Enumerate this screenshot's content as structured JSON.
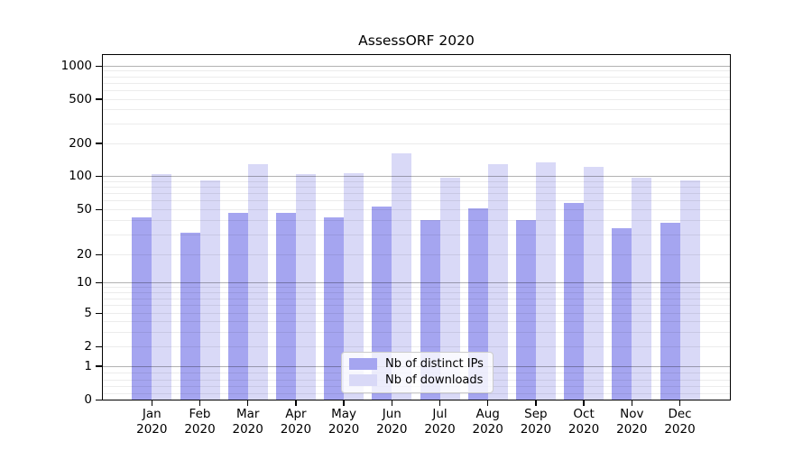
{
  "title": "AssessORF 2020",
  "chart_data": {
    "type": "bar",
    "title": "AssessORF 2020",
    "categories": [
      "Jan 2020",
      "Feb 2020",
      "Mar 2020",
      "Apr 2020",
      "May 2020",
      "Jun 2020",
      "Jul 2020",
      "Aug 2020",
      "Sep 2020",
      "Oct 2020",
      "Nov 2020",
      "Dec 2020"
    ],
    "x_tick_line1": [
      "Jan",
      "Feb",
      "Mar",
      "Apr",
      "May",
      "Jun",
      "Jul",
      "Aug",
      "Sep",
      "Oct",
      "Nov",
      "Dec"
    ],
    "x_tick_line2": "2020",
    "series": [
      {
        "name": "Nb of distinct IPs",
        "color": "#a5a5f0",
        "values": [
          43,
          31,
          47,
          47,
          43,
          53,
          40,
          51,
          40,
          57,
          34,
          38
        ]
      },
      {
        "name": "Nb of downloads",
        "color": "#d9d9f7",
        "values": [
          105,
          93,
          129,
          105,
          107,
          162,
          98,
          130,
          135,
          122,
          97,
          93
        ]
      }
    ],
    "yscale": "symlog",
    "y_ticks": [
      0,
      1,
      2,
      5,
      10,
      20,
      50,
      100,
      200,
      500,
      1000
    ],
    "ylim": [
      0,
      1000
    ],
    "xlabel": "",
    "ylabel": "",
    "grid": true,
    "legend_position": "lower center"
  },
  "colors": {
    "bar_distinct_ips": "#a5a5f0",
    "bar_downloads": "#d9d9f7",
    "grid_major": "#b3b3b3",
    "grid_minor": "#ececec",
    "spine": "#000000",
    "background": "#ffffff",
    "text": "#000000"
  }
}
